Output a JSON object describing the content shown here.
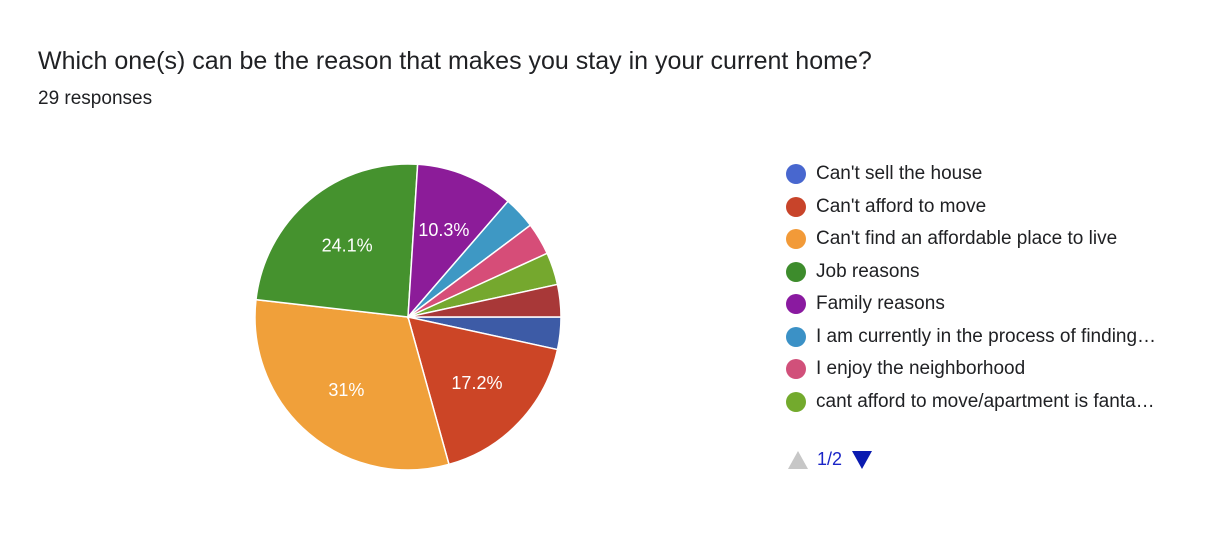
{
  "header": {
    "title": "Which one(s) can be the reason that makes you stay in your current home?",
    "responses": "29 responses"
  },
  "chart_data": {
    "type": "pie",
    "title": "Which one(s) can be the reason that makes you stay in your current home?",
    "total_responses": 29,
    "slices": [
      {
        "label": "Can't sell the house",
        "value": 3.4,
        "count": 1,
        "color": "#3d5ba6",
        "data_label": ""
      },
      {
        "label": "Can't afford to move",
        "value": 17.2,
        "count": 5,
        "color": "#cc4526",
        "data_label": "17.2%"
      },
      {
        "label": "Can't find an affordable place to live",
        "value": 31.0,
        "count": 9,
        "color": "#f0a03a",
        "data_label": "31%"
      },
      {
        "label": "Job reasons",
        "value": 24.1,
        "count": 7,
        "color": "#45922e",
        "data_label": "24.1%"
      },
      {
        "label": "Family reasons",
        "value": 10.3,
        "count": 3,
        "color": "#8c1c99",
        "data_label": "10.3%"
      },
      {
        "label": "I am currently in the process of finding…",
        "value": 3.4,
        "count": 1,
        "color": "#3e98c4",
        "data_label": ""
      },
      {
        "label": "I enjoy the neighborhood",
        "value": 3.4,
        "count": 1,
        "color": "#d64d78",
        "data_label": ""
      },
      {
        "label": "cant afford to move/apartment is fanta…",
        "value": 3.4,
        "count": 1,
        "color": "#75a82e",
        "data_label": ""
      },
      {
        "label": "",
        "value": 3.4,
        "count": 1,
        "color": "#a83838",
        "data_label": ""
      }
    ],
    "legend_position": "right"
  },
  "legend": {
    "items": [
      {
        "label": "Can't sell the house",
        "color": "#4867cf"
      },
      {
        "label": "Can't afford to move",
        "color": "#c8442a"
      },
      {
        "label": "Can't find an affordable place to live",
        "color": "#f29a38"
      },
      {
        "label": "Job reasons",
        "color": "#3d8c2c"
      },
      {
        "label": "Family reasons",
        "color": "#8a1aa0"
      },
      {
        "label": "I am currently in the process of finding…",
        "color": "#3b91c6"
      },
      {
        "label": "I enjoy the neighborhood",
        "color": "#d1507a"
      },
      {
        "label": "cant afford to move/apartment is fanta…",
        "color": "#73aa2d"
      }
    ]
  },
  "pager": {
    "text": "1/2",
    "prev_icon": "triangle-up-icon",
    "next_icon": "triangle-down-icon"
  }
}
